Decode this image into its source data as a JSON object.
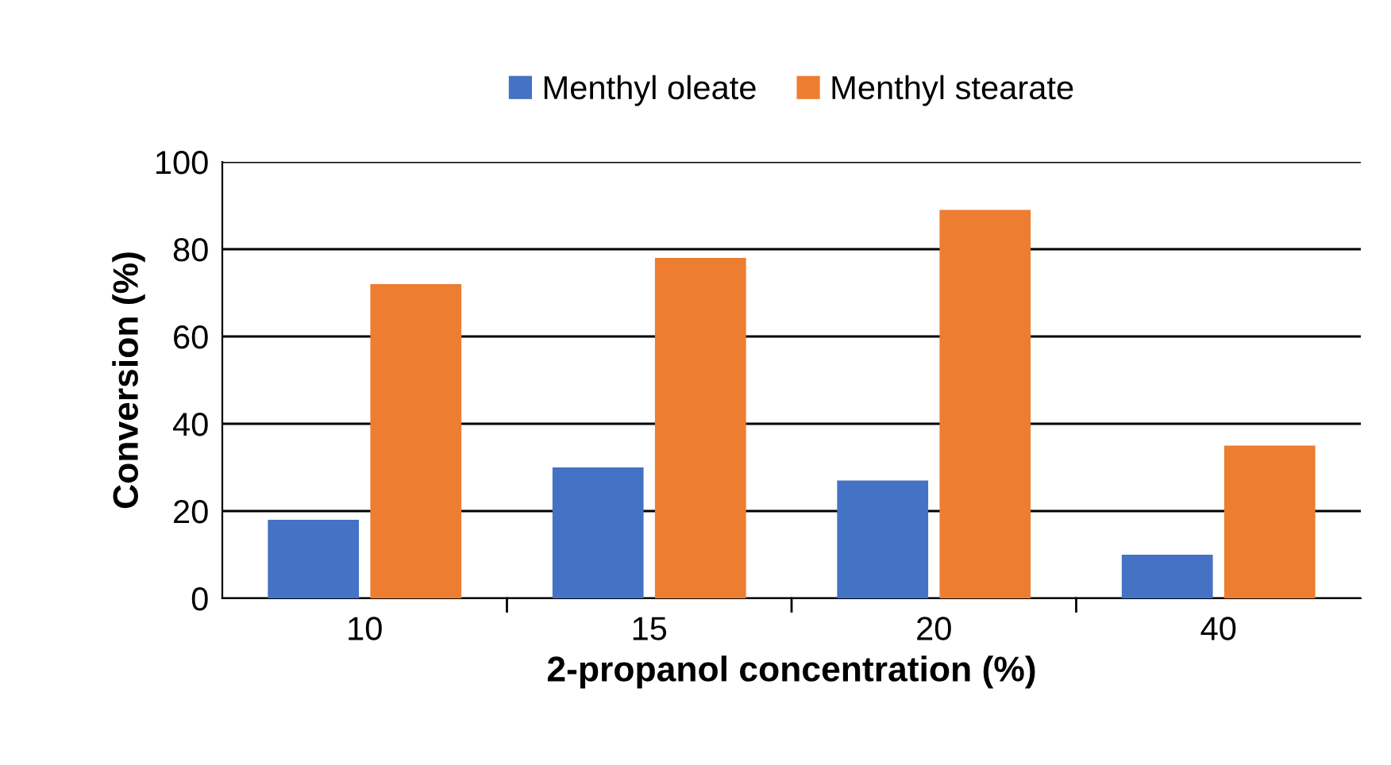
{
  "chart_data": {
    "type": "bar",
    "xlabel": "2-propanol concentration (%)",
    "ylabel": "Conversion (%)",
    "categories": [
      "10",
      "15",
      "20",
      "40"
    ],
    "series": [
      {
        "name": "Menthyl oleate",
        "color": "#4472c4",
        "values": [
          18,
          30,
          27,
          10
        ]
      },
      {
        "name": "Menthyl stearate",
        "color": "#ed7d31",
        "values": [
          72,
          78,
          89,
          35
        ]
      }
    ],
    "ylim": [
      0,
      100
    ],
    "yticks": [
      0,
      20,
      40,
      60,
      80,
      100
    ],
    "grid": "y",
    "legend": "top"
  }
}
